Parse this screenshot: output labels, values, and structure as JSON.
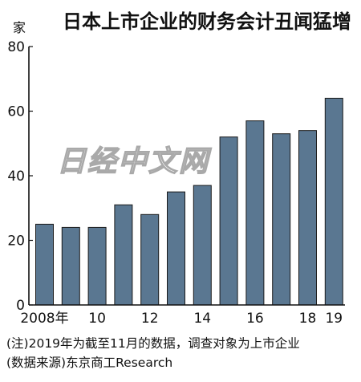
{
  "chart_data": {
    "type": "bar",
    "title": "日本上市企业的财务会计丑闻猛增",
    "ylabel": "家",
    "ylim": [
      0,
      80
    ],
    "yticks": [
      0,
      20,
      40,
      60,
      80
    ],
    "categories": [
      "2008",
      "2009",
      "2010",
      "2011",
      "2012",
      "2013",
      "2014",
      "2015",
      "2016",
      "2017",
      "2018",
      "2019"
    ],
    "values": [
      25,
      24,
      24,
      31,
      28,
      35,
      37,
      52,
      57,
      53,
      54,
      64
    ],
    "xtick_labels": [
      "2008年",
      "",
      "10",
      "",
      "12",
      "",
      "14",
      "",
      "16",
      "",
      "18",
      "19"
    ],
    "grid": false,
    "bar_color": "#5a7791"
  },
  "watermark": "日经中文网",
  "notes": [
    "(注)2019年为截至11月的数据，调查对象为上市企业",
    "(数据来源)东京商工Research"
  ]
}
